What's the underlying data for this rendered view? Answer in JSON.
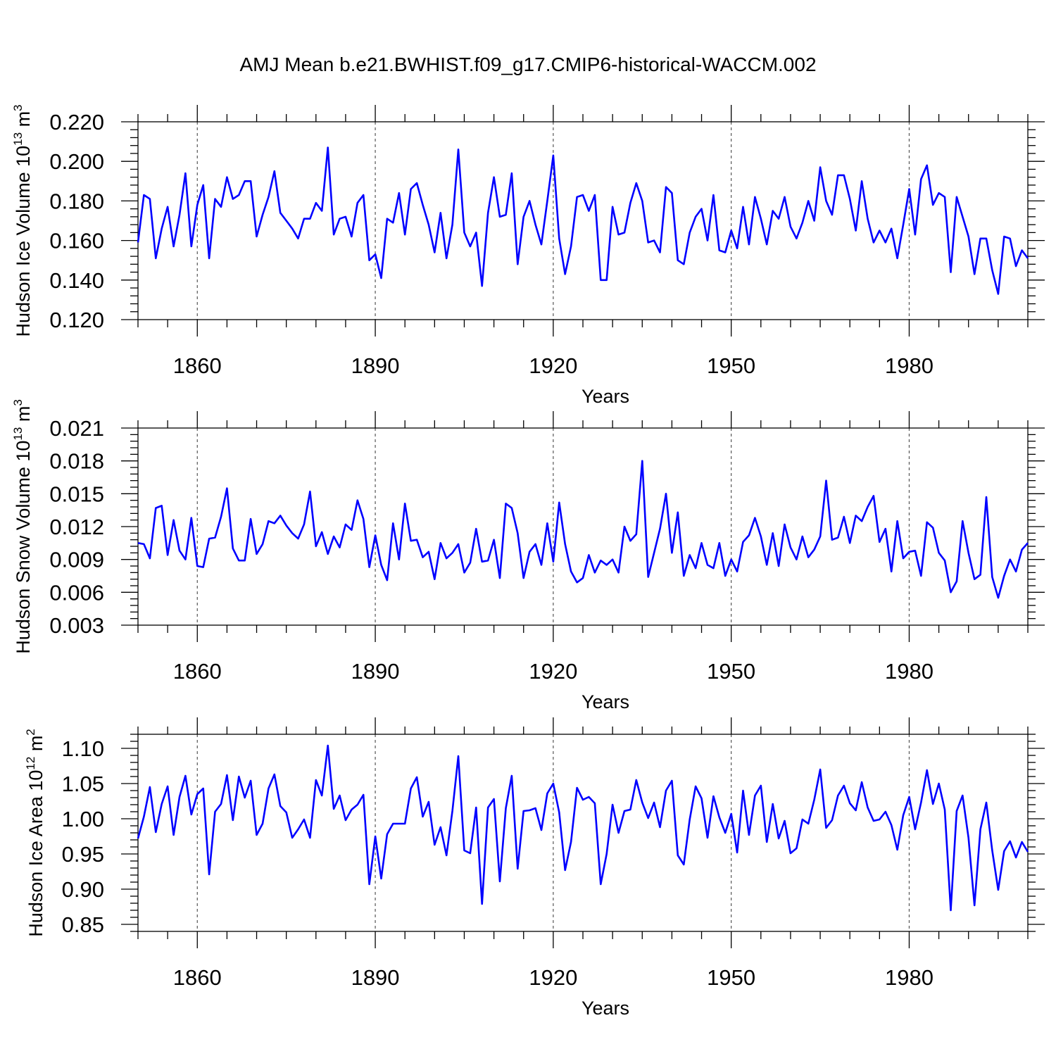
{
  "figure": {
    "title": "AMJ Mean b.e21.BWHIST.f09_g17.CMIP6-historical-WACCM.002"
  },
  "chart_data": [
    {
      "type": "line",
      "xlabel": "Years",
      "ylabel": {
        "text": "Hudson Ice Volume 10",
        "exp1": "13",
        "mid": " m",
        "exp2": "3"
      },
      "xlim": [
        1850,
        2000
      ],
      "ylim": [
        0.12,
        0.22
      ],
      "xticks": [
        1860,
        1890,
        1920,
        1950,
        1980
      ],
      "yticks": [
        0.12,
        0.14,
        0.16,
        0.18,
        0.2,
        0.22
      ],
      "ytick_labels": [
        "0.120",
        "0.140",
        "0.160",
        "0.180",
        "0.200",
        "0.220"
      ],
      "grid": "vertical dashed at major x ticks",
      "series_color": "#0000ff",
      "x_start": 1850,
      "values": [
        0.159,
        0.183,
        0.181,
        0.151,
        0.166,
        0.177,
        0.157,
        0.173,
        0.194,
        0.157,
        0.178,
        0.188,
        0.151,
        0.181,
        0.177,
        0.192,
        0.181,
        0.183,
        0.19,
        0.19,
        0.162,
        0.173,
        0.182,
        0.195,
        0.174,
        0.17,
        0.166,
        0.161,
        0.171,
        0.171,
        0.179,
        0.175,
        0.207,
        0.163,
        0.171,
        0.172,
        0.162,
        0.179,
        0.183,
        0.15,
        0.153,
        0.141,
        0.171,
        0.169,
        0.184,
        0.163,
        0.186,
        0.189,
        0.178,
        0.168,
        0.154,
        0.174,
        0.151,
        0.168,
        0.206,
        0.164,
        0.157,
        0.164,
        0.137,
        0.174,
        0.192,
        0.172,
        0.173,
        0.194,
        0.148,
        0.172,
        0.18,
        0.168,
        0.158,
        0.18,
        0.203,
        0.161,
        0.143,
        0.157,
        0.182,
        0.183,
        0.175,
        0.183,
        0.14,
        0.14,
        0.177,
        0.163,
        0.164,
        0.179,
        0.189,
        0.18,
        0.159,
        0.16,
        0.154,
        0.187,
        0.184,
        0.15,
        0.148,
        0.164,
        0.172,
        0.176,
        0.16,
        0.183,
        0.155,
        0.154,
        0.165,
        0.156,
        0.177,
        0.158,
        0.182,
        0.171,
        0.158,
        0.175,
        0.171,
        0.182,
        0.167,
        0.161,
        0.169,
        0.18,
        0.17,
        0.197,
        0.18,
        0.173,
        0.193,
        0.193,
        0.181,
        0.165,
        0.19,
        0.171,
        0.159,
        0.165,
        0.159,
        0.166,
        0.151,
        0.168,
        0.186,
        0.163,
        0.191,
        0.198,
        0.178,
        0.184,
        0.182,
        0.144,
        0.182,
        0.172,
        0.162,
        0.143,
        0.161,
        0.161,
        0.145,
        0.133,
        0.162,
        0.161,
        0.147,
        0.155,
        0.151
      ]
    },
    {
      "type": "line",
      "xlabel": "Years",
      "ylabel": {
        "text": "Hudson Snow Volume 10",
        "exp1": "13",
        "mid": " m",
        "exp2": "3"
      },
      "xlim": [
        1850,
        2000
      ],
      "ylim": [
        0.003,
        0.021
      ],
      "xticks": [
        1860,
        1890,
        1920,
        1950,
        1980
      ],
      "yticks": [
        0.003,
        0.006,
        0.009,
        0.012,
        0.015,
        0.018,
        0.021
      ],
      "ytick_labels": [
        "0.003",
        "0.006",
        "0.009",
        "0.012",
        "0.015",
        "0.018",
        "0.021"
      ],
      "grid": "vertical dashed at major x ticks",
      "series_color": "#0000ff",
      "x_start": 1850,
      "values": [
        0.0105,
        0.0104,
        0.0091,
        0.0137,
        0.0139,
        0.0094,
        0.0126,
        0.0098,
        0.009,
        0.0128,
        0.0084,
        0.0083,
        0.0109,
        0.011,
        0.0129,
        0.0155,
        0.01,
        0.0089,
        0.0089,
        0.0127,
        0.0095,
        0.0104,
        0.0125,
        0.0123,
        0.013,
        0.0121,
        0.0114,
        0.0109,
        0.0122,
        0.0152,
        0.0102,
        0.0115,
        0.0095,
        0.0111,
        0.0101,
        0.0122,
        0.0117,
        0.0144,
        0.0127,
        0.0083,
        0.0112,
        0.0085,
        0.0071,
        0.0123,
        0.009,
        0.0141,
        0.0107,
        0.0108,
        0.0092,
        0.0097,
        0.0072,
        0.0105,
        0.0091,
        0.0096,
        0.0104,
        0.0078,
        0.0087,
        0.0118,
        0.0088,
        0.0089,
        0.0108,
        0.0073,
        0.0141,
        0.0137,
        0.0114,
        0.0073,
        0.0097,
        0.0104,
        0.0085,
        0.0123,
        0.0088,
        0.0142,
        0.0104,
        0.0079,
        0.0069,
        0.0073,
        0.0094,
        0.0078,
        0.0089,
        0.0085,
        0.009,
        0.0078,
        0.012,
        0.0107,
        0.0113,
        0.018,
        0.0074,
        0.0096,
        0.0118,
        0.015,
        0.0096,
        0.0133,
        0.0075,
        0.0094,
        0.0082,
        0.0105,
        0.0085,
        0.0082,
        0.0105,
        0.0075,
        0.009,
        0.0079,
        0.0106,
        0.0112,
        0.0128,
        0.0111,
        0.0085,
        0.0114,
        0.0084,
        0.0122,
        0.0101,
        0.009,
        0.0111,
        0.0092,
        0.0099,
        0.0111,
        0.0162,
        0.0108,
        0.011,
        0.0129,
        0.0105,
        0.013,
        0.0125,
        0.0138,
        0.0148,
        0.0106,
        0.0118,
        0.0079,
        0.0125,
        0.0091,
        0.0097,
        0.0098,
        0.0075,
        0.0124,
        0.0119,
        0.0096,
        0.0089,
        0.006,
        0.007,
        0.0125,
        0.0096,
        0.0072,
        0.0076,
        0.0147,
        0.0074,
        0.0055,
        0.0075,
        0.009,
        0.0079,
        0.0099,
        0.0105
      ]
    },
    {
      "type": "line",
      "xlabel": "Years",
      "ylabel": {
        "text": "Hudson Ice Area 10",
        "exp1": "12",
        "mid": " m",
        "exp2": "2"
      },
      "xlim": [
        1850,
        2000
      ],
      "ylim": [
        0.84,
        1.12
      ],
      "xticks": [
        1860,
        1890,
        1920,
        1950,
        1980
      ],
      "yticks": [
        0.85,
        0.9,
        0.95,
        1.0,
        1.05,
        1.1
      ],
      "ytick_labels": [
        "0.85",
        "0.90",
        "0.95",
        "1.00",
        "1.05",
        "1.10"
      ],
      "grid": "vertical dashed at major x ticks",
      "series_color": "#0000ff",
      "x_start": 1850,
      "values": [
        0.972,
        1.003,
        1.045,
        0.981,
        1.021,
        1.046,
        0.977,
        1.031,
        1.061,
        1.006,
        1.035,
        1.043,
        0.921,
        1.01,
        1.021,
        1.062,
        0.998,
        1.06,
        1.03,
        1.054,
        0.977,
        0.993,
        1.043,
        1.063,
        1.018,
        1.009,
        0.973,
        0.985,
        0.999,
        0.973,
        1.055,
        1.033,
        1.104,
        1.014,
        1.033,
        0.998,
        1.013,
        1.02,
        1.034,
        0.907,
        0.975,
        0.915,
        0.978,
        0.993,
        0.993,
        0.993,
        1.043,
        1.059,
        1.003,
        1.024,
        0.963,
        0.988,
        0.948,
        1.011,
        1.089,
        0.955,
        0.951,
        1.016,
        0.879,
        1.016,
        1.028,
        0.911,
        1.015,
        1.061,
        0.929,
        1.011,
        1.012,
        1.015,
        0.984,
        1.036,
        1.05,
        1.009,
        0.927,
        0.967,
        1.044,
        1.027,
        1.031,
        1.022,
        0.907,
        0.95,
        1.02,
        0.98,
        1.011,
        1.013,
        1.055,
        1.023,
        1.001,
        1.023,
        0.988,
        1.04,
        1.054,
        0.948,
        0.935,
        0.999,
        1.046,
        1.029,
        0.973,
        1.032,
        1.002,
        0.98,
        1.007,
        0.952,
        1.04,
        0.977,
        1.033,
        1.047,
        0.967,
        1.021,
        0.972,
        0.997,
        0.951,
        0.958,
        0.999,
        0.993,
        1.027,
        1.07,
        0.987,
        0.998,
        1.033,
        1.047,
        1.022,
        1.012,
        1.052,
        1.016,
        0.997,
        0.999,
        1.01,
        0.991,
        0.956,
        1.005,
        1.031,
        0.985,
        1.023,
        1.069,
        1.021,
        1.05,
        1.013,
        0.87,
        1.011,
        1.033,
        0.973,
        0.877,
        0.985,
        1.023,
        0.955,
        0.899,
        0.954,
        0.968,
        0.945,
        0.967,
        0.953
      ]
    }
  ]
}
